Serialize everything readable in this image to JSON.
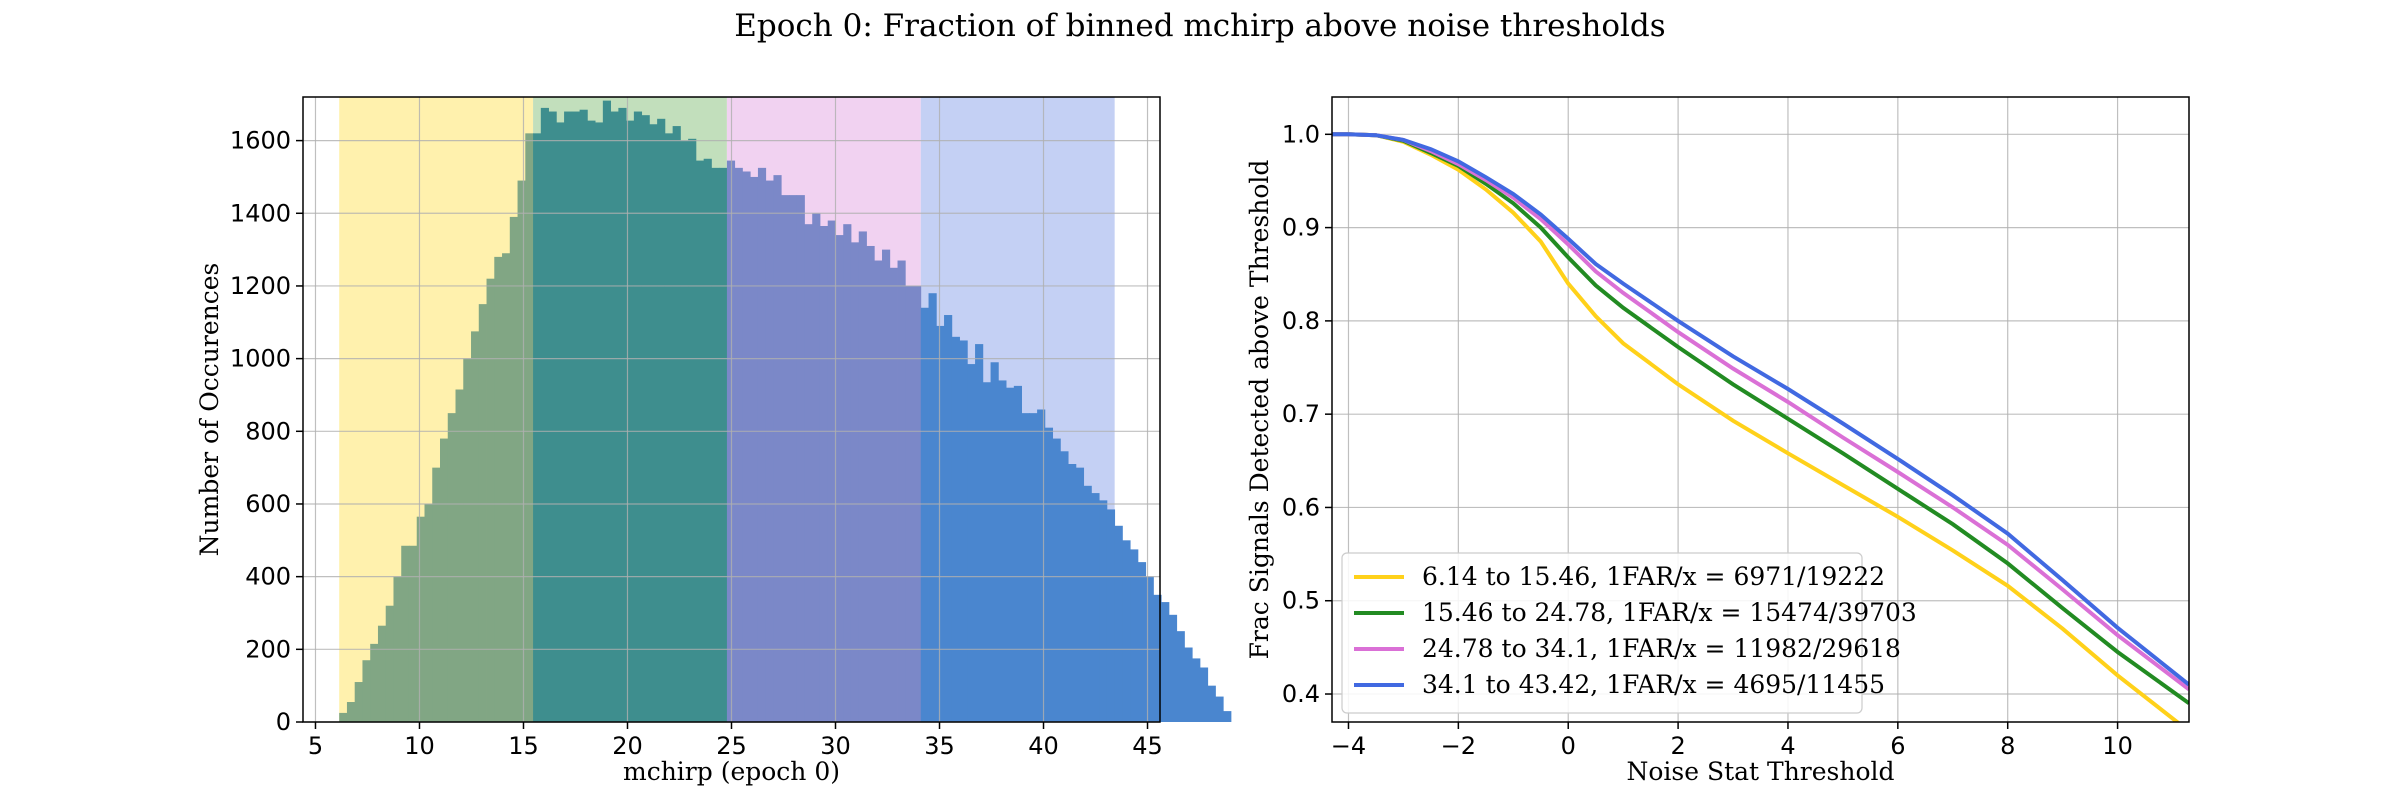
{
  "figure": {
    "title": "Epoch 0: Fraction of binned mchirp above noise thresholds"
  },
  "chart_data": [
    {
      "type": "bar",
      "subtype": "histogram",
      "xlabel": "mchirp (epoch 0)",
      "ylabel": "Number of Occurences",
      "xlim": [
        4.4,
        45.6
      ],
      "ylim": [
        0,
        1720
      ],
      "xticks": [
        5,
        10,
        15,
        20,
        25,
        30,
        35,
        40,
        45
      ],
      "yticks": [
        0,
        200,
        400,
        600,
        800,
        1000,
        1200,
        1400,
        1600
      ],
      "grid": true,
      "bin_start": 6.14,
      "bin_width": 0.3728,
      "counts": [
        25,
        55,
        110,
        170,
        215,
        265,
        320,
        400,
        485,
        485,
        565,
        600,
        700,
        780,
        850,
        915,
        1000,
        1075,
        1150,
        1220,
        1280,
        1290,
        1390,
        1490,
        1620,
        1620,
        1690,
        1680,
        1650,
        1680,
        1680,
        1685,
        1655,
        1650,
        1710,
        1680,
        1690,
        1655,
        1680,
        1670,
        1645,
        1660,
        1620,
        1640,
        1600,
        1605,
        1545,
        1550,
        1525,
        1525,
        1545,
        1525,
        1515,
        1500,
        1525,
        1490,
        1505,
        1450,
        1450,
        1450,
        1370,
        1400,
        1365,
        1380,
        1340,
        1370,
        1320,
        1350,
        1310,
        1270,
        1300,
        1250,
        1270,
        1200,
        1200,
        1140,
        1180,
        1090,
        1120,
        1060,
        1050,
        985,
        1040,
        935,
        990,
        940,
        920,
        925,
        850,
        850,
        860,
        810,
        780,
        745,
        710,
        700,
        650,
        630,
        610,
        585,
        540,
        500,
        475,
        440,
        400,
        350,
        330,
        295,
        250,
        205,
        175,
        150,
        100,
        70,
        30
      ],
      "bar_colors": [
        {
          "from": 6.14,
          "to": 15.46,
          "color": "#81a684"
        },
        {
          "from": 15.46,
          "to": 24.78,
          "color": "#3e8e8e"
        },
        {
          "from": 24.78,
          "to": 34.1,
          "color": "#7b88c8"
        },
        {
          "from": 34.1,
          "to": 43.42,
          "color": "#4a86cf"
        }
      ],
      "shaded_regions": [
        {
          "from": 6.14,
          "to": 15.46,
          "color": "#fff1ad"
        },
        {
          "from": 15.46,
          "to": 24.78,
          "color": "#c2dfbc"
        },
        {
          "from": 24.78,
          "to": 34.1,
          "color": "#f1d2f1"
        },
        {
          "from": 34.1,
          "to": 43.42,
          "color": "#c4d0f4"
        }
      ]
    },
    {
      "type": "line",
      "xlabel": "Noise Stat Threshold",
      "ylabel": "Frac Signals Detected above Threshold",
      "xlim": [
        -4.3,
        11.3
      ],
      "ylim": [
        0.37,
        1.04
      ],
      "xticks": [
        -4,
        -2,
        0,
        2,
        4,
        6,
        8,
        10
      ],
      "yticks": [
        0.4,
        0.5,
        0.6,
        0.7,
        0.8,
        0.9,
        1.0
      ],
      "grid": true,
      "legend_position": "lower-left",
      "series": [
        {
          "name": "6.14 to 15.46, 1FAR/x = 6971/19222",
          "color": "#ffd11a",
          "x": [
            -4.3,
            -4,
            -3.5,
            -3,
            -2.5,
            -2,
            -1.5,
            -1,
            -0.5,
            0,
            0.5,
            1,
            2,
            3,
            4,
            5,
            6,
            7,
            8,
            9,
            10,
            11.3
          ],
          "y": [
            1.0,
            1.0,
            0.999,
            0.992,
            0.978,
            0.962,
            0.941,
            0.916,
            0.885,
            0.84,
            0.805,
            0.776,
            0.732,
            0.693,
            0.658,
            0.624,
            0.59,
            0.554,
            0.516,
            0.47,
            0.42,
            0.36
          ]
        },
        {
          "name": "15.46 to 24.78, 1FAR/x = 15474/39703",
          "color": "#228b22",
          "x": [
            -4.3,
            -4,
            -3.5,
            -3,
            -2.5,
            -2,
            -1.5,
            -1,
            -0.5,
            0,
            0.5,
            1,
            2,
            3,
            4,
            5,
            6,
            7,
            8,
            9,
            10,
            11.3
          ],
          "y": [
            1.0,
            1.0,
            0.999,
            0.993,
            0.98,
            0.966,
            0.947,
            0.926,
            0.9,
            0.868,
            0.838,
            0.814,
            0.772,
            0.732,
            0.695,
            0.658,
            0.62,
            0.582,
            0.54,
            0.492,
            0.445,
            0.39
          ]
        },
        {
          "name": "24.78 to 34.1, 1FAR/x = 11982/29618",
          "color": "#da70d6",
          "x": [
            -4.3,
            -4,
            -3.5,
            -3,
            -2.5,
            -2,
            -1.5,
            -1,
            -0.5,
            0,
            0.5,
            1,
            2,
            3,
            4,
            5,
            6,
            7,
            8,
            9,
            10,
            11.3
          ],
          "y": [
            1.0,
            1.0,
            0.999,
            0.994,
            0.982,
            0.968,
            0.951,
            0.932,
            0.909,
            0.882,
            0.853,
            0.83,
            0.788,
            0.749,
            0.713,
            0.675,
            0.638,
            0.6,
            0.56,
            0.512,
            0.463,
            0.405
          ]
        },
        {
          "name": "34.1 to 43.42, 1FAR/x = 4695/11455",
          "color": "#4169e1",
          "x": [
            -4.3,
            -4,
            -3.5,
            -3,
            -2.5,
            -2,
            -1.5,
            -1,
            -0.5,
            0,
            0.5,
            1,
            2,
            3,
            4,
            5,
            6,
            7,
            8,
            9,
            10,
            11.3
          ],
          "y": [
            1.0,
            1.0,
            0.999,
            0.994,
            0.984,
            0.971,
            0.954,
            0.936,
            0.914,
            0.888,
            0.861,
            0.84,
            0.8,
            0.762,
            0.727,
            0.69,
            0.652,
            0.613,
            0.572,
            0.522,
            0.471,
            0.41
          ]
        }
      ]
    }
  ]
}
